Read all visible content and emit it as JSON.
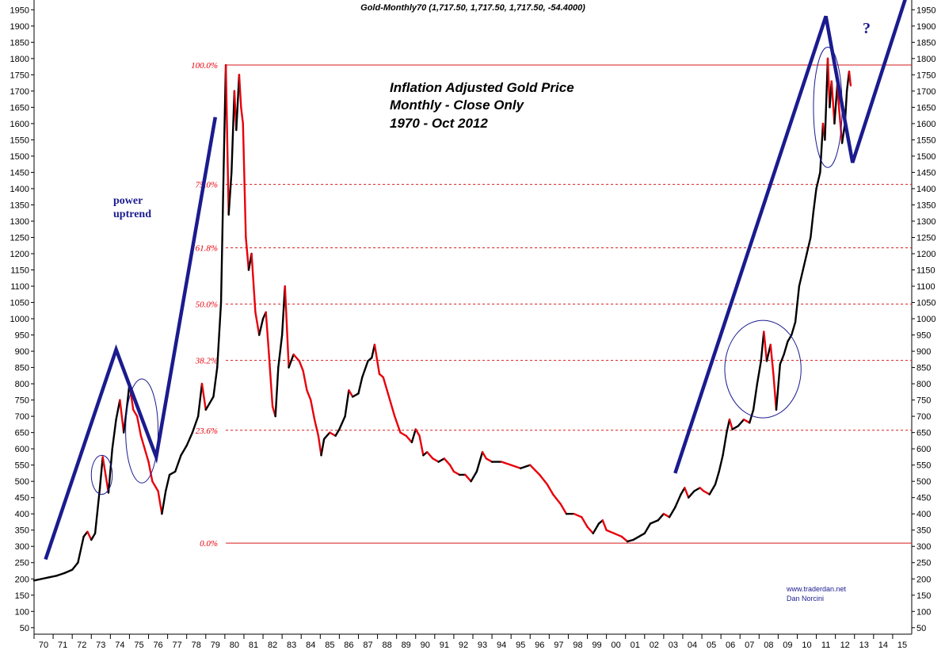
{
  "header": "Gold-Monthly70 (1,717.50, 1,717.50, 1,717.50, -54.4000)",
  "chart_data": {
    "type": "line",
    "title": [
      "Inflation Adjusted Gold Price",
      "Monthly - Close Only",
      "1970 - Oct 2012"
    ],
    "xlabel": "",
    "ylabel": "",
    "x_tick_labels": [
      "70",
      "71",
      "72",
      "73",
      "74",
      "75",
      "76",
      "77",
      "78",
      "79",
      "80",
      "81",
      "82",
      "83",
      "84",
      "85",
      "86",
      "87",
      "88",
      "89",
      "90",
      "91",
      "92",
      "93",
      "94",
      "95",
      "96",
      "97",
      "98",
      "99",
      "00",
      "01",
      "02",
      "03",
      "04",
      "05",
      "06",
      "07",
      "08",
      "09",
      "10",
      "11",
      "12",
      "13",
      "14",
      "15"
    ],
    "x_range": [
      1970,
      2016
    ],
    "y_range": [
      30,
      1980
    ],
    "y_ticks": [
      50,
      100,
      150,
      200,
      250,
      300,
      350,
      400,
      450,
      500,
      550,
      600,
      650,
      700,
      750,
      800,
      850,
      900,
      950,
      1000,
      1050,
      1100,
      1150,
      1200,
      1250,
      1300,
      1350,
      1400,
      1450,
      1500,
      1550,
      1600,
      1650,
      1700,
      1750,
      1800,
      1850,
      1900,
      1950
    ],
    "colors": {
      "up": "#000000",
      "down": "#e8000b",
      "annotation": "#1b1b8f",
      "fib_line": "#d41a1a"
    },
    "series": [
      {
        "points": [
          [
            1970.0,
            195
          ],
          [
            1970.4,
            200
          ],
          [
            1970.8,
            205
          ],
          [
            1971.2,
            210
          ],
          [
            1971.6,
            218
          ],
          [
            1972.0,
            228
          ],
          [
            1972.3,
            250
          ],
          [
            1972.6,
            330
          ],
          [
            1972.8,
            345
          ],
          [
            1973.0,
            320
          ],
          [
            1973.2,
            340
          ],
          [
            1973.45,
            480
          ],
          [
            1973.6,
            575
          ],
          [
            1973.75,
            520
          ],
          [
            1973.9,
            465
          ],
          [
            1974.1,
            600
          ],
          [
            1974.3,
            690
          ],
          [
            1974.5,
            750
          ],
          [
            1974.7,
            650
          ],
          [
            1974.85,
            720
          ],
          [
            1975.0,
            800
          ],
          [
            1975.2,
            720
          ],
          [
            1975.4,
            700
          ],
          [
            1975.6,
            640
          ],
          [
            1975.8,
            600
          ],
          [
            1976.0,
            560
          ],
          [
            1976.2,
            500
          ],
          [
            1976.5,
            470
          ],
          [
            1976.7,
            400
          ],
          [
            1976.9,
            470
          ],
          [
            1977.1,
            520
          ],
          [
            1977.4,
            530
          ],
          [
            1977.7,
            580
          ],
          [
            1978.0,
            610
          ],
          [
            1978.3,
            650
          ],
          [
            1978.6,
            700
          ],
          [
            1978.8,
            800
          ],
          [
            1979.0,
            720
          ],
          [
            1979.2,
            740
          ],
          [
            1979.4,
            760
          ],
          [
            1979.6,
            850
          ],
          [
            1979.8,
            1050
          ],
          [
            1979.95,
            1500
          ],
          [
            1980.05,
            1780
          ],
          [
            1980.2,
            1320
          ],
          [
            1980.35,
            1450
          ],
          [
            1980.5,
            1700
          ],
          [
            1980.6,
            1580
          ],
          [
            1980.75,
            1750
          ],
          [
            1980.85,
            1650
          ],
          [
            1980.95,
            1600
          ],
          [
            1981.1,
            1250
          ],
          [
            1981.25,
            1150
          ],
          [
            1981.4,
            1200
          ],
          [
            1981.6,
            1020
          ],
          [
            1981.8,
            950
          ],
          [
            1982.0,
            1000
          ],
          [
            1982.15,
            1020
          ],
          [
            1982.3,
            900
          ],
          [
            1982.5,
            730
          ],
          [
            1982.65,
            700
          ],
          [
            1982.8,
            850
          ],
          [
            1983.0,
            950
          ],
          [
            1983.15,
            1100
          ],
          [
            1983.35,
            850
          ],
          [
            1983.6,
            890
          ],
          [
            1983.9,
            870
          ],
          [
            1984.1,
            840
          ],
          [
            1984.3,
            780
          ],
          [
            1984.5,
            750
          ],
          [
            1984.7,
            690
          ],
          [
            1984.9,
            640
          ],
          [
            1985.05,
            580
          ],
          [
            1985.2,
            630
          ],
          [
            1985.5,
            650
          ],
          [
            1985.8,
            640
          ],
          [
            1986.0,
            660
          ],
          [
            1986.3,
            700
          ],
          [
            1986.5,
            780
          ],
          [
            1986.7,
            760
          ],
          [
            1987.0,
            770
          ],
          [
            1987.2,
            820
          ],
          [
            1987.5,
            870
          ],
          [
            1987.7,
            880
          ],
          [
            1987.85,
            920
          ],
          [
            1988.1,
            830
          ],
          [
            1988.3,
            820
          ],
          [
            1988.5,
            780
          ],
          [
            1988.7,
            740
          ],
          [
            1988.9,
            700
          ],
          [
            1989.2,
            650
          ],
          [
            1989.5,
            640
          ],
          [
            1989.8,
            620
          ],
          [
            1990.0,
            660
          ],
          [
            1990.2,
            640
          ],
          [
            1990.4,
            580
          ],
          [
            1990.6,
            590
          ],
          [
            1990.9,
            570
          ],
          [
            1991.2,
            560
          ],
          [
            1991.5,
            570
          ],
          [
            1991.8,
            550
          ],
          [
            1992.0,
            530
          ],
          [
            1992.3,
            520
          ],
          [
            1992.6,
            520
          ],
          [
            1992.9,
            500
          ],
          [
            1993.2,
            530
          ],
          [
            1993.5,
            590
          ],
          [
            1993.7,
            570
          ],
          [
            1994.0,
            560
          ],
          [
            1994.5,
            560
          ],
          [
            1995.0,
            550
          ],
          [
            1995.5,
            540
          ],
          [
            1996.0,
            550
          ],
          [
            1996.5,
            520
          ],
          [
            1996.9,
            490
          ],
          [
            1997.2,
            460
          ],
          [
            1997.6,
            430
          ],
          [
            1997.9,
            400
          ],
          [
            1998.3,
            400
          ],
          [
            1998.7,
            390
          ],
          [
            1999.0,
            360
          ],
          [
            1999.3,
            340
          ],
          [
            1999.6,
            370
          ],
          [
            1999.8,
            380
          ],
          [
            2000.0,
            350
          ],
          [
            2000.4,
            340
          ],
          [
            2000.8,
            330
          ],
          [
            2001.1,
            315
          ],
          [
            2001.4,
            320
          ],
          [
            2001.7,
            330
          ],
          [
            2002.0,
            340
          ],
          [
            2002.3,
            370
          ],
          [
            2002.7,
            380
          ],
          [
            2003.0,
            400
          ],
          [
            2003.3,
            390
          ],
          [
            2003.6,
            420
          ],
          [
            2003.9,
            460
          ],
          [
            2004.1,
            480
          ],
          [
            2004.3,
            450
          ],
          [
            2004.6,
            470
          ],
          [
            2004.9,
            480
          ],
          [
            2005.1,
            470
          ],
          [
            2005.4,
            460
          ],
          [
            2005.7,
            490
          ],
          [
            2005.9,
            530
          ],
          [
            2006.1,
            580
          ],
          [
            2006.3,
            650
          ],
          [
            2006.45,
            690
          ],
          [
            2006.6,
            660
          ],
          [
            2006.9,
            670
          ],
          [
            2007.2,
            690
          ],
          [
            2007.5,
            680
          ],
          [
            2007.7,
            720
          ],
          [
            2007.9,
            800
          ],
          [
            2008.1,
            870
          ],
          [
            2008.25,
            960
          ],
          [
            2008.4,
            870
          ],
          [
            2008.6,
            920
          ],
          [
            2008.75,
            830
          ],
          [
            2008.9,
            720
          ],
          [
            2009.1,
            860
          ],
          [
            2009.3,
            890
          ],
          [
            2009.5,
            930
          ],
          [
            2009.7,
            950
          ],
          [
            2009.9,
            990
          ],
          [
            2010.1,
            1100
          ],
          [
            2010.3,
            1150
          ],
          [
            2010.5,
            1200
          ],
          [
            2010.7,
            1250
          ],
          [
            2010.85,
            1330
          ],
          [
            2011.0,
            1400
          ],
          [
            2011.2,
            1450
          ],
          [
            2011.35,
            1600
          ],
          [
            2011.45,
            1550
          ],
          [
            2011.6,
            1800
          ],
          [
            2011.7,
            1650
          ],
          [
            2011.8,
            1730
          ],
          [
            2011.95,
            1600
          ],
          [
            2012.1,
            1720
          ],
          [
            2012.2,
            1640
          ],
          [
            2012.35,
            1540
          ],
          [
            2012.5,
            1600
          ],
          [
            2012.6,
            1700
          ],
          [
            2012.72,
            1760
          ],
          [
            2012.8,
            1717
          ]
        ]
      }
    ],
    "fib_levels": [
      {
        "label": "100.0%",
        "value": 1780
      },
      {
        "label": "75.0%",
        "value": 1413
      },
      {
        "label": "61.8%",
        "value": 1218
      },
      {
        "label": "50.0%",
        "value": 1045
      },
      {
        "label": "38.2%",
        "value": 872
      },
      {
        "label": "23.6%",
        "value": 657
      },
      {
        "label": "0.0%",
        "value": 310
      }
    ],
    "annotations": {
      "power_uptrend": [
        "power",
        "uptrend"
      ],
      "question_mark": "?",
      "trend_lines": [
        [
          [
            1970.6,
            260
          ],
          [
            1974.3,
            905
          ],
          [
            1976.4,
            575
          ],
          [
            1979.5,
            1620
          ]
        ],
        [
          [
            2003.6,
            525
          ],
          [
            2011.5,
            1930
          ],
          [
            2012.9,
            1480
          ],
          [
            2015.7,
            1990
          ]
        ]
      ],
      "circles": [
        {
          "cx": 1973.55,
          "cy": 520,
          "rx": 0.55,
          "ry": 60
        },
        {
          "cx": 1975.65,
          "cy": 655,
          "rx": 0.85,
          "ry": 160
        },
        {
          "cx": 2008.2,
          "cy": 845,
          "rx": 2.0,
          "ry": 150
        },
        {
          "cx": 2011.6,
          "cy": 1650,
          "rx": 0.75,
          "ry": 185
        }
      ]
    },
    "source": [
      "www.traderdan.net",
      "Dan Norcini"
    ],
    "grid": false
  }
}
